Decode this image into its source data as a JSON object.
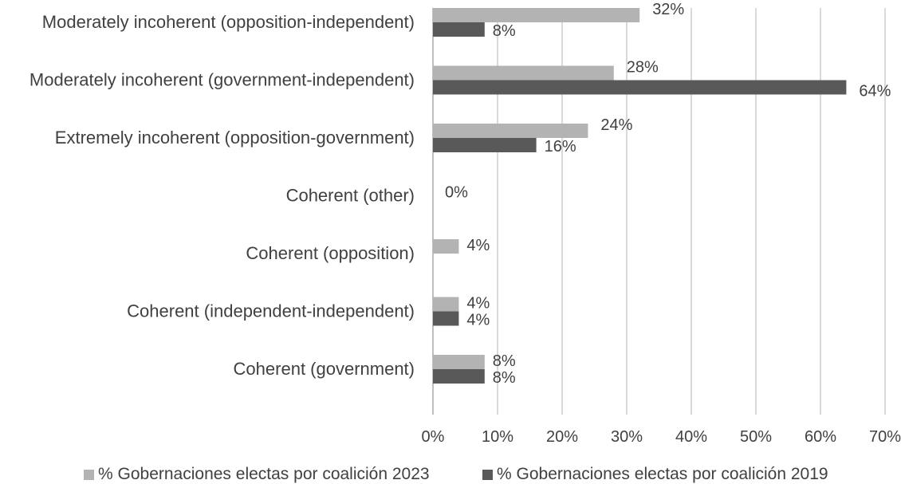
{
  "chart_data": {
    "type": "bar",
    "orientation": "horizontal",
    "categories": [
      "Moderately incoherent (opposition-independent)",
      "Moderately incoherent (government-independent)",
      "Extremely incoherent (opposition-government)",
      "Coherent (other)",
      "Coherent (opposition)",
      "Coherent (independent-independent)",
      "Coherent (government)"
    ],
    "series": [
      {
        "name": "% Gobernaciones electas por coalición 2023",
        "color": "#b3b3b3",
        "values": [
          32,
          28,
          24,
          0,
          4,
          4,
          8
        ],
        "labels": [
          "32%",
          "28%",
          "24%",
          "0%",
          "4%",
          "4%",
          "8%"
        ]
      },
      {
        "name": "% Gobernaciones electas por coalición 2019",
        "color": "#595959",
        "values": [
          8,
          64,
          16,
          null,
          null,
          4,
          8
        ],
        "labels": [
          "8%",
          "64%",
          "16%",
          "",
          "",
          "4%",
          "8%"
        ]
      }
    ],
    "xlim": [
      0,
      70
    ],
    "xticks": [
      "0%",
      "10%",
      "20%",
      "30%",
      "40%",
      "50%",
      "60%",
      "70%"
    ],
    "grid": true,
    "legend_position": "bottom"
  }
}
